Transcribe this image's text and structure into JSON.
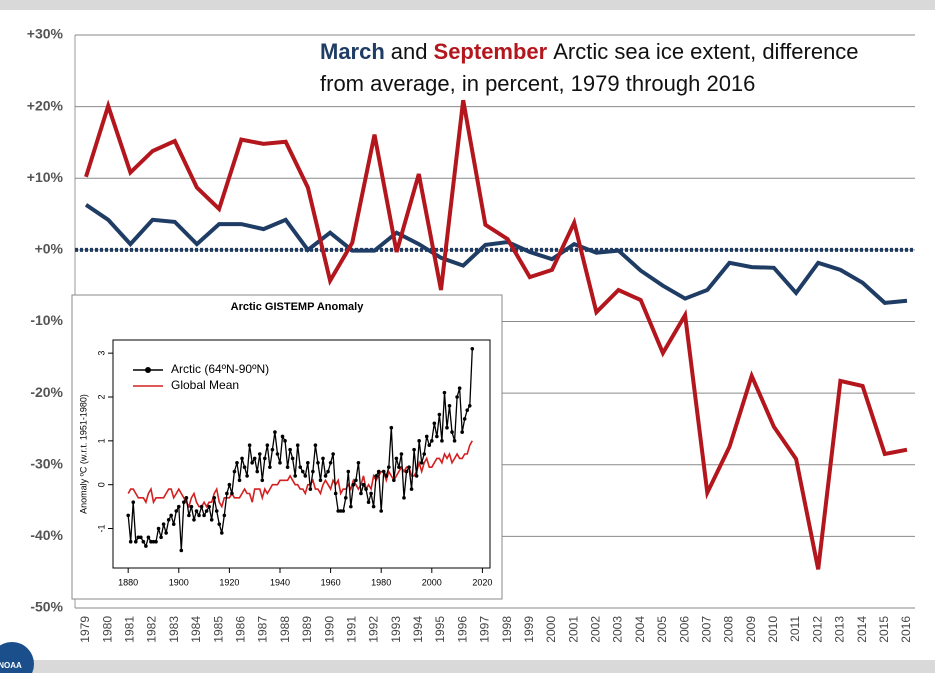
{
  "logo_text": "NOAA",
  "chart_data": [
    {
      "type": "line",
      "title": [
        "March",
        "and",
        "September",
        "Arctic sea ice extent, difference",
        "from average, in percent, 1979 through 2016"
      ],
      "categories": [
        "1979",
        "1980",
        "1981",
        "1982",
        "1983",
        "1984",
        "1985",
        "1986",
        "1987",
        "1988",
        "1989",
        "1990",
        "1991",
        "1992",
        "1993",
        "1994",
        "1995",
        "1996",
        "1997",
        "1998",
        "1999",
        "2000",
        "2001",
        "2002",
        "2003",
        "2004",
        "2005",
        "2006",
        "2007",
        "2008",
        "2009",
        "2010",
        "2011",
        "2012",
        "2013",
        "2014",
        "2015",
        "2016"
      ],
      "series": [
        {
          "name": "March",
          "color": "#1f3c64",
          "values": [
            6.3,
            4.2,
            0.8,
            4.2,
            3.9,
            0.8,
            3.6,
            3.6,
            2.9,
            4.2,
            0,
            2.4,
            -0.1,
            -0.1,
            2.4,
            0.8,
            -1.1,
            -2.2,
            0.7,
            1.1,
            -0.3,
            -1.3,
            0.8,
            -0.4,
            -0.1,
            -2.9,
            -5.0,
            -6.8,
            -5.6,
            -1.8,
            -2.4,
            -2.5,
            -6.0,
            -1.8,
            -2.8,
            -4.6,
            -7.4,
            -7.1
          ]
        },
        {
          "name": "September",
          "color": "#b3161c",
          "values": [
            10.2,
            20.1,
            10.8,
            13.8,
            15.2,
            8.7,
            5.7,
            15.4,
            14.8,
            15.1,
            8.7,
            -4.3,
            1.0,
            16.1,
            -0.3,
            10.6,
            -5.6,
            20.9,
            3.5,
            1.5,
            -3.8,
            -2.8,
            3.8,
            -8.7,
            -5.6,
            -7.0,
            -14.4,
            -9.1,
            -33.9,
            -27.5,
            -17.6,
            -24.7,
            -29.2,
            -44.6,
            -18.3,
            -19.0,
            -28.5,
            -27.9
          ]
        }
      ],
      "ylim": [
        -50,
        30
      ],
      "yticks": [
        {
          "value": -50,
          "label": "-50%"
        },
        {
          "value": -40,
          "label": "-40%"
        },
        {
          "value": -30,
          "label": "-30%"
        },
        {
          "value": -20,
          "label": "-20%"
        },
        {
          "value": -10,
          "label": "-10%"
        },
        {
          "value": 0,
          "label": "+0%"
        },
        {
          "value": 10,
          "label": "+10%"
        },
        {
          "value": 20,
          "label": "+20%"
        },
        {
          "value": 30,
          "label": "+30%"
        }
      ],
      "grid": true,
      "reference_line": 0
    },
    {
      "type": "line",
      "title": "Arctic GISTEMP Anomaly",
      "ylabel": "Anomaly ºC (w.r.t. 1951-1980)",
      "x": [
        1880,
        1881,
        1882,
        1883,
        1884,
        1885,
        1886,
        1887,
        1888,
        1889,
        1890,
        1891,
        1892,
        1893,
        1894,
        1895,
        1896,
        1897,
        1898,
        1899,
        1900,
        1901,
        1902,
        1903,
        1904,
        1905,
        1906,
        1907,
        1908,
        1909,
        1910,
        1911,
        1912,
        1913,
        1914,
        1915,
        1916,
        1917,
        1918,
        1919,
        1920,
        1921,
        1922,
        1923,
        1924,
        1925,
        1926,
        1927,
        1928,
        1929,
        1930,
        1931,
        1932,
        1933,
        1934,
        1935,
        1936,
        1937,
        1938,
        1939,
        1940,
        1941,
        1942,
        1943,
        1944,
        1945,
        1946,
        1947,
        1948,
        1949,
        1950,
        1951,
        1952,
        1953,
        1954,
        1955,
        1956,
        1957,
        1958,
        1959,
        1960,
        1961,
        1962,
        1963,
        1964,
        1965,
        1966,
        1967,
        1968,
        1969,
        1970,
        1971,
        1972,
        1973,
        1974,
        1975,
        1976,
        1977,
        1978,
        1979,
        1980,
        1981,
        1982,
        1983,
        1984,
        1985,
        1986,
        1987,
        1988,
        1989,
        1990,
        1991,
        1992,
        1993,
        1994,
        1995,
        1996,
        1997,
        1998,
        1999,
        2000,
        2001,
        2002,
        2003,
        2004,
        2005,
        2006,
        2007,
        2008,
        2009,
        2010,
        2011,
        2012,
        2013,
        2014,
        2015,
        2016
      ],
      "series": [
        {
          "name": "Arctic (64ºN-90ºN)",
          "color": "#000000",
          "markers": true,
          "values": [
            -0.7,
            -1.3,
            -0.4,
            -1.3,
            -1.2,
            -1.2,
            -1.3,
            -1.4,
            -1.2,
            -1.3,
            -1.3,
            -1.3,
            -1.0,
            -1.2,
            -0.9,
            -1.1,
            -0.8,
            -0.7,
            -0.9,
            -0.6,
            -0.5,
            -1.5,
            -0.4,
            -0.3,
            -0.7,
            -0.5,
            -0.8,
            -0.6,
            -0.7,
            -0.5,
            -0.7,
            -0.6,
            -0.5,
            -0.8,
            -0.3,
            -0.6,
            -0.9,
            -1.1,
            -0.7,
            -0.2,
            0.0,
            -0.2,
            0.3,
            0.5,
            0.1,
            0.6,
            0.4,
            0.2,
            0.9,
            0.5,
            0.6,
            0.3,
            0.7,
            0.1,
            0.6,
            0.9,
            0.4,
            0.8,
            1.2,
            0.7,
            0.5,
            1.1,
            1.0,
            0.4,
            0.8,
            0.6,
            0.2,
            0.9,
            0.4,
            0.3,
            0.2,
            0.5,
            -0.1,
            0.3,
            0.9,
            0.5,
            0.1,
            0.6,
            0.2,
            0.3,
            0.5,
            0.7,
            -0.2,
            -0.6,
            -0.6,
            -0.6,
            -0.3,
            0.3,
            -0.5,
            0.0,
            0.1,
            0.5,
            -0.2,
            0.0,
            -0.1,
            -0.4,
            -0.2,
            -0.5,
            0.2,
            0.3,
            -0.6,
            0.3,
            0.2,
            0.4,
            1.3,
            0.1,
            0.6,
            0.4,
            0.7,
            -0.3,
            0.3,
            0.4,
            -0.1,
            0.8,
            0.2,
            1.0,
            0.5,
            0.7,
            1.1,
            0.9,
            1.0,
            1.4,
            1.1,
            1.6,
            1.0,
            2.1,
            1.3,
            1.8,
            1.2,
            1.0,
            2.0,
            2.2,
            1.2,
            1.5,
            1.7,
            1.8,
            3.1
          ]
        },
        {
          "name": "Global Mean",
          "color": "#d42020",
          "markers": false,
          "values": [
            -0.2,
            -0.1,
            -0.1,
            -0.2,
            -0.3,
            -0.3,
            -0.3,
            -0.4,
            -0.2,
            -0.1,
            -0.4,
            -0.3,
            -0.3,
            -0.3,
            -0.3,
            -0.2,
            -0.1,
            -0.1,
            -0.3,
            -0.2,
            -0.1,
            -0.2,
            -0.3,
            -0.4,
            -0.5,
            -0.3,
            -0.2,
            -0.4,
            -0.5,
            -0.5,
            -0.4,
            -0.5,
            -0.4,
            -0.4,
            -0.2,
            -0.1,
            -0.4,
            -0.5,
            -0.3,
            -0.3,
            -0.3,
            -0.2,
            -0.3,
            -0.3,
            -0.3,
            -0.2,
            -0.1,
            -0.2,
            -0.2,
            -0.4,
            -0.1,
            -0.1,
            -0.1,
            -0.3,
            -0.1,
            -0.2,
            -0.1,
            0.0,
            0.0,
            0.0,
            0.1,
            0.1,
            0.1,
            0.1,
            0.2,
            0.1,
            0.0,
            0.0,
            -0.1,
            -0.1,
            -0.2,
            0.0,
            0.0,
            0.1,
            -0.1,
            -0.1,
            -0.2,
            0.0,
            0.1,
            0.0,
            -0.1,
            0.1,
            0.0,
            0.1,
            -0.2,
            -0.1,
            -0.1,
            0.0,
            -0.1,
            0.1,
            0.0,
            -0.1,
            0.0,
            0.2,
            -0.1,
            0.0,
            -0.1,
            0.2,
            0.1,
            0.2,
            0.3,
            0.3,
            0.1,
            0.3,
            0.2,
            0.1,
            0.2,
            0.3,
            0.4,
            0.3,
            0.4,
            0.4,
            0.2,
            0.2,
            0.3,
            0.5,
            0.3,
            0.5,
            0.6,
            0.4,
            0.4,
            0.5,
            0.6,
            0.6,
            0.5,
            0.7,
            0.6,
            0.7,
            0.5,
            0.6,
            0.7,
            0.6,
            0.6,
            0.7,
            0.7,
            0.9,
            1.0
          ]
        }
      ],
      "xlim": [
        1874,
        2023
      ],
      "xticks": [
        1880,
        1900,
        1920,
        1940,
        1960,
        1980,
        2000,
        2020
      ],
      "ylim": [
        -1.9,
        3.3
      ],
      "yticks": [
        -1,
        0,
        1,
        2,
        3
      ],
      "legend": "upper left"
    }
  ]
}
